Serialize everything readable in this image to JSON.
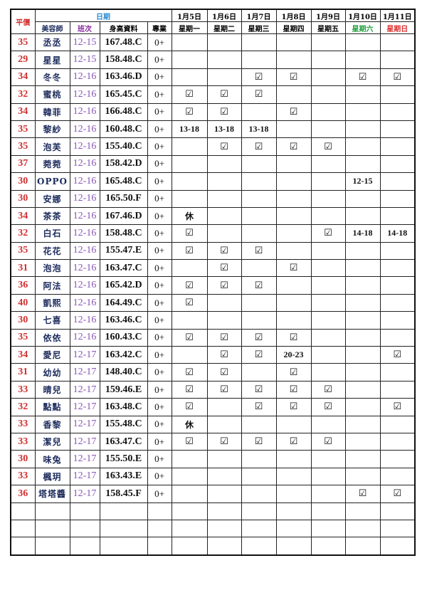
{
  "header": {
    "price": "平價",
    "date": "日期",
    "stylist": "美容師",
    "shift": "班次",
    "profile": "身高資料",
    "specialty": "專業",
    "dates": [
      "1月5日",
      "1月6日",
      "1月7日",
      "1月8日",
      "1月9日",
      "1月10日",
      "1月11日"
    ],
    "weekdays": [
      "星期一",
      "星期二",
      "星期三",
      "星期四",
      "星期五",
      "星期六",
      "星期日"
    ]
  },
  "colors": {
    "price": "#d03030",
    "date_header": "#2a8ad0",
    "shift": "#8a55b5",
    "saturday": "#20a040",
    "sunday": "#e03030"
  },
  "check_symbol": "☑",
  "rows": [
    {
      "price": "35",
      "name": "丞丞",
      "shift": "12-15",
      "profile": "167.48.C",
      "specialty": "0+",
      "days": [
        "",
        "",
        "",
        "",
        "",
        "",
        ""
      ]
    },
    {
      "price": "29",
      "name": "星星",
      "shift": "12-15",
      "profile": "158.48.C",
      "specialty": "0+",
      "days": [
        "",
        "",
        "",
        "",
        "",
        "",
        ""
      ]
    },
    {
      "price": "34",
      "name": "冬冬",
      "shift": "12-16",
      "profile": "163.46.D",
      "specialty": "0+",
      "days": [
        "",
        "",
        "☑",
        "☑",
        "",
        "☑",
        "☑"
      ]
    },
    {
      "price": "32",
      "name": "蜜桃",
      "shift": "12-16",
      "profile": "165.45.C",
      "specialty": "0+",
      "days": [
        "☑",
        "☑",
        "☑",
        "",
        "",
        "",
        ""
      ]
    },
    {
      "price": "34",
      "name": "韓菲",
      "shift": "12-16",
      "profile": "166.48.C",
      "specialty": "0+",
      "days": [
        "☑",
        "☑",
        "",
        "☑",
        "",
        "",
        ""
      ]
    },
    {
      "price": "35",
      "name": "黎紗",
      "shift": "12-16",
      "profile": "160.48.C",
      "specialty": "0+",
      "days": [
        "13-18",
        "13-18",
        "13-18",
        "",
        "",
        "",
        ""
      ]
    },
    {
      "price": "35",
      "name": "泡芙",
      "shift": "12-16",
      "profile": "155.40.C",
      "specialty": "0+",
      "days": [
        "",
        "☑",
        "☑",
        "☑",
        "☑",
        "",
        ""
      ]
    },
    {
      "price": "37",
      "name": "菀菀",
      "shift": "12-16",
      "profile": "158.42.D",
      "specialty": "0+",
      "days": [
        "",
        "",
        "",
        "",
        "",
        "",
        ""
      ]
    },
    {
      "price": "30",
      "name": "OPPO",
      "shift": "12-16",
      "profile": "165.48.C",
      "specialty": "0+",
      "days": [
        "",
        "",
        "",
        "",
        "",
        "12-15",
        ""
      ]
    },
    {
      "price": "30",
      "name": "安娜",
      "shift": "12-16",
      "profile": "165.50.F",
      "specialty": "0+",
      "days": [
        "",
        "",
        "",
        "",
        "",
        "",
        ""
      ]
    },
    {
      "price": "34",
      "name": "茶茶",
      "shift": "12-16",
      "profile": "167.46.D",
      "specialty": "0+",
      "days": [
        "休",
        "",
        "",
        "",
        "",
        "",
        ""
      ]
    },
    {
      "price": "32",
      "name": "白石",
      "shift": "12-16",
      "profile": "158.48.C",
      "specialty": "0+",
      "days": [
        "☑",
        "",
        "",
        "",
        "☑",
        "14-18",
        "14-18"
      ]
    },
    {
      "price": "35",
      "name": "花花",
      "shift": "12-16",
      "profile": "155.47.E",
      "specialty": "0+",
      "days": [
        "☑",
        "☑",
        "☑",
        "",
        "",
        "",
        ""
      ]
    },
    {
      "price": "31",
      "name": "泡泡",
      "shift": "12-16",
      "profile": "163.47.C",
      "specialty": "0+",
      "days": [
        "",
        "☑",
        "",
        "☑",
        "",
        "",
        ""
      ]
    },
    {
      "price": "36",
      "name": "阿法",
      "shift": "12-16",
      "profile": "165.42.D",
      "specialty": "0+",
      "days": [
        "☑",
        "☑",
        "☑",
        "",
        "",
        "",
        ""
      ]
    },
    {
      "price": "40",
      "name": "凱熙",
      "shift": "12-16",
      "profile": "164.49.C",
      "specialty": "0+",
      "days": [
        "☑",
        "",
        "",
        "",
        "",
        "",
        ""
      ]
    },
    {
      "price": "30",
      "name": "七喜",
      "shift": "12-16",
      "profile": "163.46.C",
      "specialty": "0+",
      "days": [
        "",
        "",
        "",
        "",
        "",
        "",
        ""
      ]
    },
    {
      "price": "35",
      "name": "依依",
      "shift": "12-16",
      "profile": "160.43.C",
      "specialty": "0+",
      "days": [
        "☑",
        "☑",
        "☑",
        "☑",
        "",
        "",
        ""
      ]
    },
    {
      "price": "34",
      "name": "愛尼",
      "shift": "12-17",
      "profile": "163.42.C",
      "specialty": "0+",
      "days": [
        "",
        "☑",
        "☑",
        "20-23",
        "",
        "",
        "☑"
      ]
    },
    {
      "price": "31",
      "name": "幼幼",
      "shift": "12-17",
      "profile": "148.40.C",
      "specialty": "0+",
      "days": [
        "☑",
        "☑",
        "",
        "☑",
        "",
        "",
        ""
      ]
    },
    {
      "price": "33",
      "name": "晴兒",
      "shift": "12-17",
      "profile": "159.46.E",
      "specialty": "0+",
      "days": [
        "☑",
        "☑",
        "☑",
        "☑",
        "☑",
        "",
        ""
      ]
    },
    {
      "price": "32",
      "name": "點點",
      "shift": "12-17",
      "profile": "163.48.C",
      "specialty": "0+",
      "days": [
        "☑",
        "",
        "☑",
        "☑",
        "☑",
        "",
        "☑"
      ]
    },
    {
      "price": "33",
      "name": "香黎",
      "shift": "12-17",
      "profile": "155.48.C",
      "specialty": "0+",
      "days": [
        "休",
        "",
        "",
        "",
        "",
        "",
        ""
      ]
    },
    {
      "price": "33",
      "name": "潔兒",
      "shift": "12-17",
      "profile": "163.47.C",
      "specialty": "0+",
      "days": [
        "☑",
        "☑",
        "☑",
        "☑",
        "☑",
        "",
        ""
      ]
    },
    {
      "price": "30",
      "name": "味兔",
      "shift": "12-17",
      "profile": "155.50.E",
      "specialty": "0+",
      "days": [
        "",
        "",
        "",
        "",
        "",
        "",
        ""
      ]
    },
    {
      "price": "33",
      "name": "楓玥",
      "shift": "12-17",
      "profile": "163.43.E",
      "specialty": "0+",
      "days": [
        "",
        "",
        "",
        "",
        "",
        "",
        ""
      ]
    },
    {
      "price": "36",
      "name": "塔塔醬",
      "shift": "12-17",
      "profile": "158.45.F",
      "specialty": "0+",
      "days": [
        "",
        "",
        "",
        "",
        "",
        "☑",
        "☑"
      ]
    }
  ]
}
